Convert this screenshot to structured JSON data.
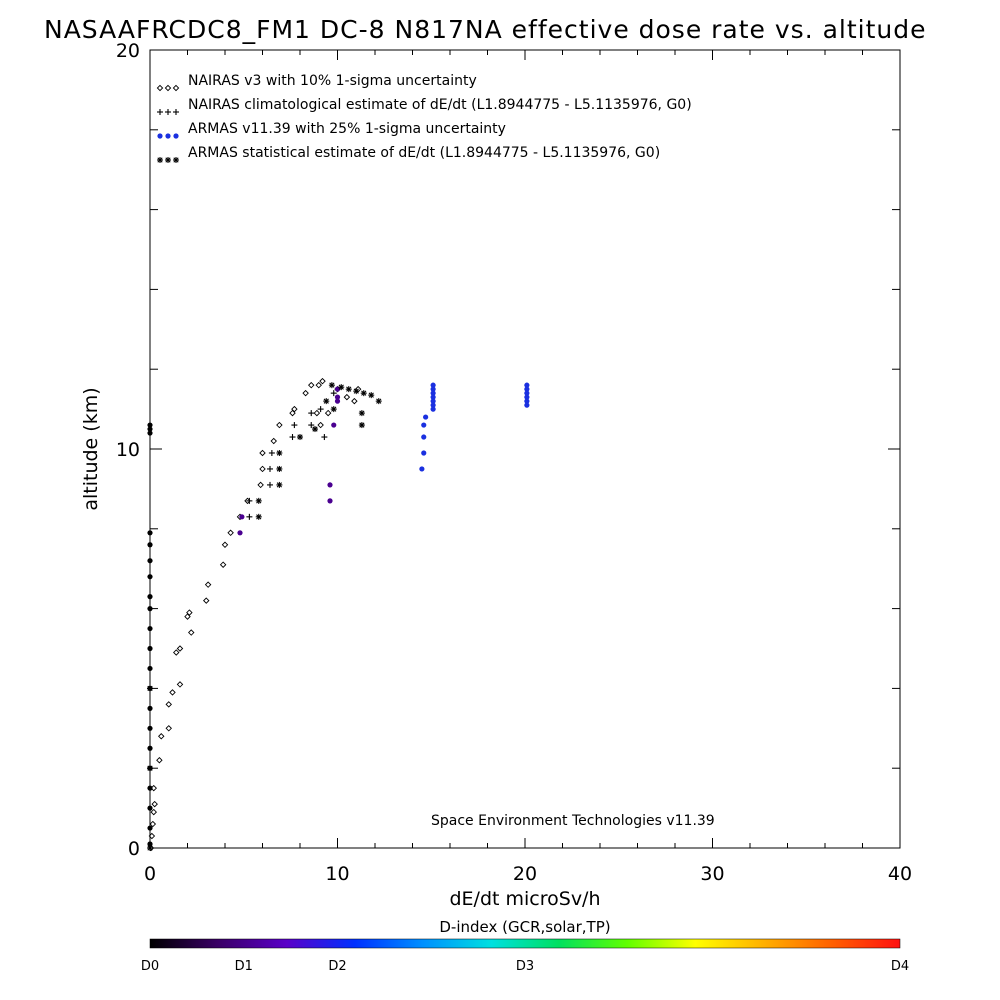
{
  "chart_data": {
    "type": "scatter",
    "title": "NASAAFRCDC8_FM1 DC-8   N817NA effective dose rate vs. altitude",
    "xlabel": "dE/dt microSv/h",
    "ylabel": "altitude (km)",
    "xlim": [
      0,
      40
    ],
    "ylim": [
      0,
      20
    ],
    "x_ticks": [
      0,
      10,
      20,
      30,
      40
    ],
    "y_ticks": [
      0,
      10,
      20
    ],
    "legend": [
      "NAIRAS v3 with 10% 1-sigma uncertainty",
      "NAIRAS climatological estimate of dE/dt (L1.8944775 - L5.1135976, G0)",
      "ARMAS v11.39 with 25% 1-sigma uncertainty",
      "ARMAS statistical estimate of dE/dt (L1.8944775 - L5.1135976, G0)"
    ],
    "legend_position": "top-left",
    "annotation": "Space Environment Technologies v11.39",
    "colorbar": {
      "label": "D-index (GCR,solar,TP)",
      "ticks": [
        {
          "label": "D0",
          "value": 0
        },
        {
          "label": "D1",
          "value": 0.125
        },
        {
          "label": "D2",
          "value": 0.25
        },
        {
          "label": "D3",
          "value": 0.5
        },
        {
          "label": "D4",
          "value": 1.0
        }
      ],
      "colors": [
        "#000000",
        "#3a0066",
        "#5a00c8",
        "#0030ff",
        "#0090ff",
        "#00e0e0",
        "#00e060",
        "#60ff00",
        "#ffff00",
        "#ffb000",
        "#ff6000",
        "#ff1010"
      ]
    },
    "series": [
      {
        "name": "NAIRAS v3 with 10% 1-sigma uncertainty",
        "marker": "diamond",
        "color": "#000000",
        "points": [
          [
            0.05,
            0.0
          ],
          [
            0.1,
            0.3
          ],
          [
            0.15,
            0.6
          ],
          [
            0.2,
            0.9
          ],
          [
            0.25,
            1.1
          ],
          [
            0.2,
            1.5
          ],
          [
            0.5,
            2.2
          ],
          [
            0.6,
            2.8
          ],
          [
            1.0,
            3.0
          ],
          [
            1.0,
            3.6
          ],
          [
            1.2,
            3.9
          ],
          [
            1.6,
            4.1
          ],
          [
            1.4,
            4.9
          ],
          [
            1.6,
            5.0
          ],
          [
            2.2,
            5.4
          ],
          [
            2.0,
            5.8
          ],
          [
            2.1,
            5.9
          ],
          [
            3.0,
            6.2
          ],
          [
            3.1,
            6.6
          ],
          [
            3.9,
            7.1
          ],
          [
            4.0,
            7.6
          ],
          [
            4.3,
            7.9
          ],
          [
            4.8,
            8.3
          ],
          [
            5.2,
            8.7
          ],
          [
            5.9,
            9.1
          ],
          [
            6.0,
            9.5
          ],
          [
            6.0,
            9.9
          ],
          [
            6.6,
            10.2
          ],
          [
            6.9,
            10.6
          ],
          [
            7.7,
            11.0
          ],
          [
            7.6,
            10.9
          ],
          [
            8.3,
            11.4
          ],
          [
            8.6,
            11.6
          ],
          [
            9.2,
            11.7
          ],
          [
            10.0,
            11.5
          ],
          [
            10.5,
            11.3
          ],
          [
            9.0,
            11.6
          ],
          [
            9.5,
            10.9
          ],
          [
            9.1,
            10.6
          ],
          [
            8.9,
            10.9
          ],
          [
            10.9,
            11.2
          ],
          [
            11.1,
            11.5
          ]
        ]
      },
      {
        "name": "NAIRAS climatological estimate of dE/dt (L1.8944775 - L5.1135976, G0)",
        "marker": "plus",
        "color": "#000000",
        "points": [
          [
            5.3,
            8.3
          ],
          [
            5.3,
            8.7
          ],
          [
            6.4,
            9.1
          ],
          [
            6.4,
            9.5
          ],
          [
            6.5,
            9.9
          ],
          [
            7.6,
            10.3
          ],
          [
            7.7,
            10.6
          ],
          [
            8.6,
            10.6
          ],
          [
            8.6,
            10.9
          ],
          [
            9.3,
            10.3
          ],
          [
            9.1,
            11.0
          ],
          [
            9.8,
            11.4
          ]
        ]
      },
      {
        "name": "ARMAS v11.39 with 25% 1-sigma uncertainty",
        "marker": "dot",
        "color": "#0040e0",
        "points": [
          [
            0.0,
            10.4
          ],
          [
            0.0,
            10.5
          ],
          [
            0.0,
            10.6
          ],
          [
            0.0,
            0.1
          ],
          [
            0.0,
            0.5
          ],
          [
            0.0,
            1.0
          ],
          [
            0.0,
            1.5
          ],
          [
            0.0,
            2.0
          ],
          [
            0.0,
            2.5
          ],
          [
            0.0,
            3.0
          ],
          [
            0.0,
            3.5
          ],
          [
            0.0,
            4.0
          ],
          [
            0.0,
            4.5
          ],
          [
            0.0,
            5.0
          ],
          [
            0.0,
            5.5
          ],
          [
            0.0,
            6.0
          ],
          [
            0.0,
            6.3
          ],
          [
            0.0,
            6.8
          ],
          [
            0.0,
            7.2
          ],
          [
            0.0,
            7.6
          ],
          [
            0.0,
            7.9
          ],
          [
            4.8,
            7.9
          ],
          [
            4.9,
            8.3
          ],
          [
            9.6,
            8.7
          ],
          [
            9.6,
            9.1
          ],
          [
            9.8,
            10.6
          ],
          [
            10.0,
            11.2
          ],
          [
            10.0,
            11.5
          ],
          [
            10.0,
            11.3
          ],
          [
            14.5,
            9.5
          ],
          [
            14.6,
            9.9
          ],
          [
            14.6,
            10.3
          ],
          [
            14.6,
            10.6
          ],
          [
            14.7,
            10.8
          ],
          [
            15.1,
            11.0
          ],
          [
            15.1,
            11.1
          ],
          [
            15.1,
            11.2
          ],
          [
            15.1,
            11.3
          ],
          [
            15.1,
            11.4
          ],
          [
            15.1,
            11.5
          ],
          [
            15.1,
            11.6
          ],
          [
            20.1,
            11.1
          ],
          [
            20.1,
            11.2
          ],
          [
            20.1,
            11.3
          ],
          [
            20.1,
            11.4
          ],
          [
            20.1,
            11.5
          ],
          [
            20.1,
            11.6
          ]
        ]
      },
      {
        "name": "ARMAS statistical estimate of dE/dt (L1.8944775 - L5.1135976, G0)",
        "marker": "asterisk",
        "color": "#000000",
        "points": [
          [
            0.0,
            0.0
          ],
          [
            0.0,
            2.0
          ],
          [
            0.0,
            4.0
          ],
          [
            5.8,
            8.3
          ],
          [
            5.8,
            8.7
          ],
          [
            6.9,
            9.1
          ],
          [
            6.9,
            9.5
          ],
          [
            6.9,
            9.9
          ],
          [
            8.0,
            10.3
          ],
          [
            8.8,
            10.5
          ],
          [
            9.4,
            11.2
          ],
          [
            9.7,
            11.6
          ],
          [
            10.2,
            11.55
          ],
          [
            10.6,
            11.5
          ],
          [
            11.0,
            11.45
          ],
          [
            11.4,
            11.4
          ],
          [
            11.8,
            11.35
          ],
          [
            12.2,
            11.2
          ],
          [
            11.3,
            10.6
          ],
          [
            11.3,
            10.9
          ],
          [
            9.8,
            11.0
          ]
        ]
      }
    ]
  }
}
